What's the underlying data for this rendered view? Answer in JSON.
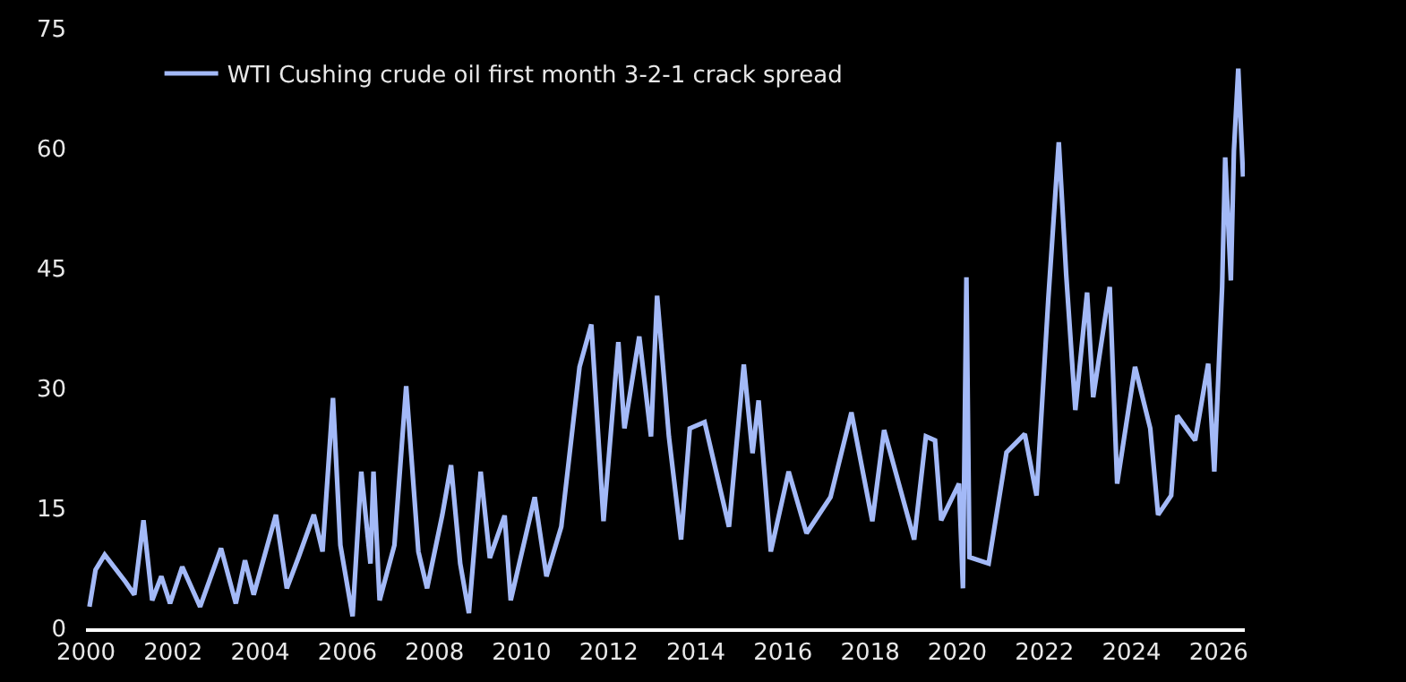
{
  "chart_data": {
    "type": "line",
    "legend": "top left",
    "grid": false,
    "marker": "none",
    "line_style": "solid",
    "xlim": [
      2000,
      2026.6
    ],
    "xticks": [
      2000,
      2002,
      2004,
      2006,
      2008,
      2010,
      2012,
      2014,
      2016,
      2018,
      2020,
      2022,
      2024,
      2026
    ],
    "ylim": [
      0,
      75
    ],
    "yticks": [
      0,
      15,
      30,
      45,
      60,
      75
    ],
    "x": [
      2000.08,
      2000.22,
      2000.43,
      2000.91,
      2001.11,
      2001.32,
      2001.52,
      2001.73,
      2001.93,
      2002.21,
      2002.62,
      2003.1,
      2003.44,
      2003.65,
      2003.85,
      2004.36,
      2004.61,
      2004.88,
      2005.23,
      2005.43,
      2005.67,
      2005.84,
      2006.12,
      2006.32,
      2006.53,
      2006.6,
      2006.74,
      2007.08,
      2007.35,
      2007.63,
      2007.83,
      2008.18,
      2008.38,
      2008.59,
      2008.79,
      2009.06,
      2009.27,
      2009.61,
      2009.75,
      2010.3,
      2010.57,
      2010.91,
      2011.33,
      2011.6,
      2011.88,
      2012.22,
      2012.36,
      2012.7,
      2012.97,
      2013.11,
      2013.38,
      2013.66,
      2013.86,
      2014.2,
      2014.76,
      2015.1,
      2015.3,
      2015.44,
      2015.72,
      2016.13,
      2016.54,
      2017.09,
      2017.57,
      2018.05,
      2018.32,
      2019.01,
      2019.28,
      2019.49,
      2019.63,
      2020.04,
      2020.13,
      2020.21,
      2020.28,
      2020.72,
      2021.13,
      2021.55,
      2021.82,
      2022.09,
      2022.33,
      2022.5,
      2022.71,
      2022.98,
      2023.12,
      2023.5,
      2023.67,
      2024.08,
      2024.43,
      2024.61,
      2024.91,
      2025.05,
      2025.46,
      2025.76,
      2025.9,
      2026.08,
      2026.15,
      2026.28,
      2026.35,
      2026.45,
      2026.56
    ],
    "series": [
      {
        "name": "WTI Cushing crude oil first month 3-2-1 crack spread",
        "color": "#a3b9f7",
        "values": [
          2.7,
          7.3,
          9.2,
          5.8,
          4.2,
          13.5,
          3.5,
          6.5,
          3.1,
          7.7,
          2.7,
          10,
          3.1,
          8.5,
          4.2,
          14.2,
          5,
          8.9,
          14.2,
          9.6,
          28.8,
          10.4,
          1.5,
          19.6,
          8.1,
          19.6,
          3.5,
          10.4,
          30.3,
          9.6,
          5,
          14.2,
          20.4,
          8.1,
          1.9,
          19.6,
          8.8,
          14.1,
          3.5,
          16.4,
          6.5,
          12.7,
          32.7,
          38,
          13.4,
          35.8,
          25,
          36.5,
          24,
          41.6,
          24,
          11.1,
          25,
          25.8,
          12.7,
          33,
          21.9,
          28.5,
          9.6,
          19.6,
          11.9,
          16.4,
          27,
          13.4,
          24.8,
          11.1,
          24,
          23.5,
          13.5,
          18.1,
          5,
          43.9,
          8.9,
          8.1,
          22,
          24.3,
          16.6,
          41.2,
          60.8,
          44.3,
          27.3,
          42,
          28.9,
          42.7,
          18.1,
          32.7,
          25,
          14.2,
          16.6,
          26.6,
          23.5,
          33.1,
          19.6,
          42.7,
          58.9,
          43.5,
          59.7,
          70,
          56.5
        ]
      }
    ]
  }
}
